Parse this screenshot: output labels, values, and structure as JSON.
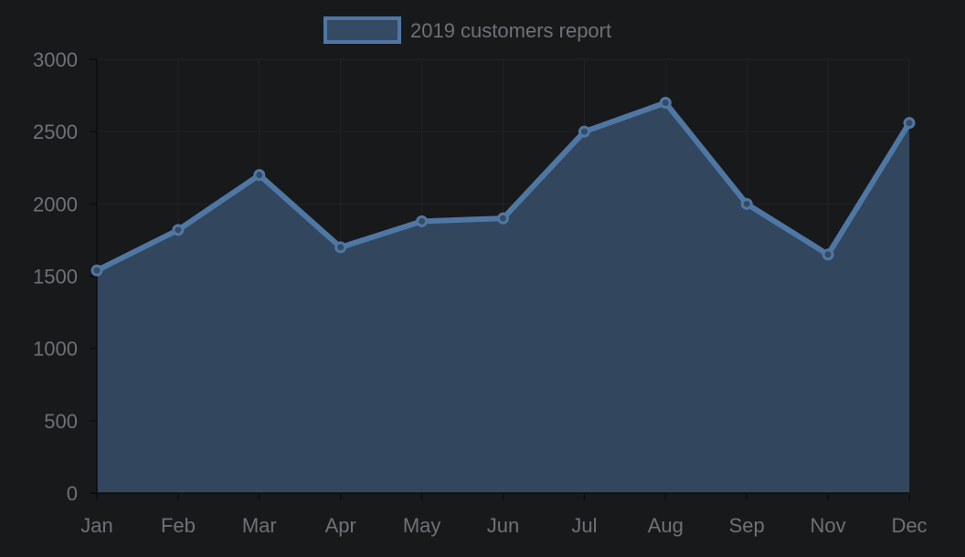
{
  "chart_data": {
    "type": "area",
    "categories": [
      "Jan",
      "Feb",
      "Mar",
      "Apr",
      "May",
      "Jun",
      "Jul",
      "Aug",
      "Sep",
      "Nov",
      "Dec"
    ],
    "series": [
      {
        "name": "2019 customers report",
        "values": [
          1540,
          1820,
          2200,
          1700,
          1880,
          1900,
          2500,
          2700,
          2000,
          1650,
          2560
        ]
      }
    ],
    "ylim": [
      0,
      3000
    ],
    "yticks": [
      0,
      500,
      1000,
      1500,
      2000,
      2500,
      3000
    ],
    "grid": true,
    "legend_position": "top-center",
    "colors": {
      "background": "#18191b",
      "line": "#4f77a4",
      "fill": "#354b64",
      "text": "#6f7175",
      "grid": "#222326"
    }
  }
}
